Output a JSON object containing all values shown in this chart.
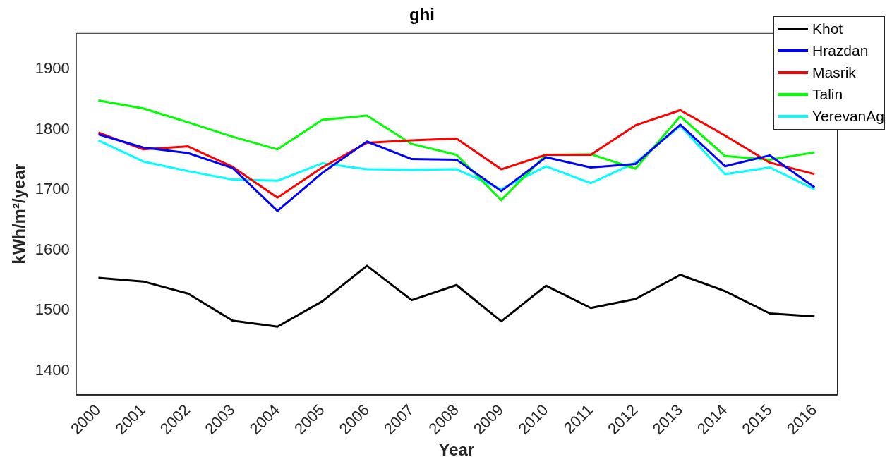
{
  "chart_data": {
    "type": "line",
    "title": "ghi",
    "xlabel": "Year",
    "ylabel": "kWh/m²/year",
    "categories": [
      "2000",
      "2001",
      "2002",
      "2003",
      "2004",
      "2005",
      "2006",
      "2007",
      "2008",
      "2009",
      "2010",
      "2011",
      "2012",
      "2013",
      "2014",
      "2015",
      "2016"
    ],
    "series": [
      {
        "name": "Khot",
        "color": "#000000",
        "values": [
          1554,
          1548,
          1528,
          1483,
          1473,
          1515,
          1574,
          1517,
          1542,
          1482,
          1541,
          1504,
          1519,
          1559,
          1532,
          1495,
          1490
        ]
      },
      {
        "name": "Hrazdan",
        "color": "#0000ff",
        "values": [
          1792,
          1770,
          1761,
          1736,
          1665,
          1728,
          1780,
          1751,
          1750,
          1698,
          1754,
          1737,
          1743,
          1808,
          1739,
          1757,
          1704
        ]
      },
      {
        "name": "Masrik",
        "color": "#ff0000",
        "values": [
          1795,
          1767,
          1772,
          1738,
          1687,
          1737,
          1778,
          1782,
          1785,
          1734,
          1758,
          1758,
          1807,
          1832,
          1790,
          1745,
          1726
        ]
      },
      {
        "name": "Talin",
        "color": "#00ff00",
        "values": [
          1848,
          1835,
          1812,
          1788,
          1767,
          1816,
          1823,
          1776,
          1758,
          1683,
          1758,
          1759,
          1735,
          1822,
          1756,
          1750,
          1762
        ]
      },
      {
        "name": "YerevanAg",
        "color": "#00ffff",
        "values": [
          1782,
          1747,
          1731,
          1717,
          1715,
          1744,
          1734,
          1733,
          1734,
          1701,
          1739,
          1711,
          1745,
          1806,
          1726,
          1737,
          1701
        ]
      }
    ],
    "ylim": [
      1360,
      1960
    ],
    "yticks": [
      1400,
      1500,
      1600,
      1700,
      1800,
      1900
    ],
    "grid": false,
    "legend": "top right",
    "marker": "none",
    "line_style": "solid"
  }
}
